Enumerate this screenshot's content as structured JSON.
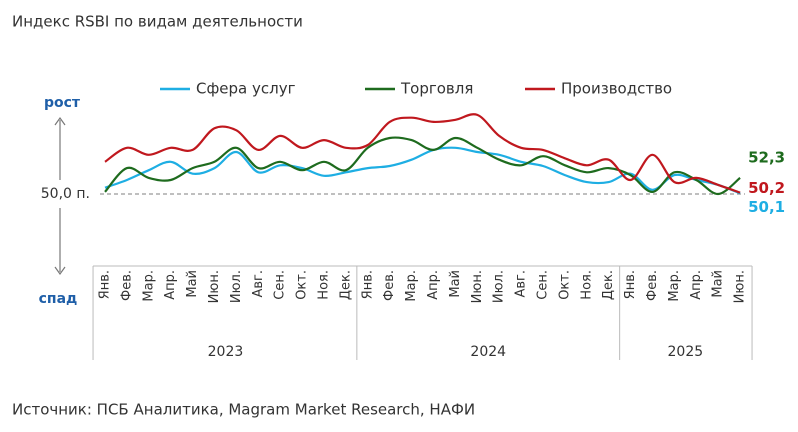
{
  "chart_data": {
    "type": "line",
    "title": "Индекс RSBI по видам деятельности",
    "source": "Источник: ПСБ Аналитика, Magram Market Research, НАФИ",
    "y_labels": {
      "up": "рост",
      "down": "спад"
    },
    "reference": {
      "value": 50,
      "label": "50,0 п."
    },
    "ylim": [
      43,
      63
    ],
    "groups": [
      {
        "label": "2023",
        "categories": [
          "Янв.",
          "Фев.",
          "Мар.",
          "Апр.",
          "Май",
          "Июн.",
          "Июл.",
          "Авг.",
          "Сен.",
          "Окт.",
          "Ноя.",
          "Дек."
        ]
      },
      {
        "label": "2024",
        "categories": [
          "Янв.",
          "Фев.",
          "Мар.",
          "Апр.",
          "Май",
          "Июн.",
          "Июл.",
          "Авг.",
          "Сен.",
          "Окт.",
          "Ноя.",
          "Дек."
        ]
      },
      {
        "label": "2025",
        "categories": [
          "Янв.",
          "Фев.",
          "Мар.",
          "Апр.",
          "Май",
          "Июн."
        ]
      }
    ],
    "series": [
      {
        "name": "Сфера услуг",
        "color": "#1eaee3",
        "values": [
          50.9,
          52,
          53.4,
          54.6,
          52.9,
          53.7,
          56,
          53.1,
          54.1,
          53.7,
          52.6,
          53.1,
          53.7,
          54,
          54.9,
          56.3,
          56.6,
          56,
          55.6,
          54.6,
          54,
          52.7,
          51.7,
          51.7,
          52.9,
          50.6,
          52.7,
          52,
          51.3,
          50.1
        ],
        "value_labels": [
          null,
          null,
          null,
          null,
          null,
          null,
          null,
          null,
          null,
          null,
          null,
          null,
          null,
          null,
          null,
          null,
          null,
          null,
          null,
          null,
          null,
          null,
          null,
          null,
          null,
          null,
          null,
          null,
          null,
          "50,1"
        ]
      },
      {
        "name": "Торговля",
        "color": "#1e6b1e",
        "values": [
          50.3,
          53.7,
          52.3,
          52,
          53.7,
          54.6,
          56.6,
          53.7,
          54.6,
          53.4,
          54.6,
          53.4,
          56.6,
          58,
          57.7,
          56.3,
          58,
          56.6,
          54.9,
          54.1,
          55.4,
          54.1,
          53.1,
          53.7,
          52.7,
          50.3,
          53.1,
          52,
          50,
          52.3
        ],
        "value_labels": [
          null,
          null,
          null,
          null,
          null,
          null,
          null,
          null,
          null,
          null,
          null,
          null,
          null,
          null,
          null,
          null,
          null,
          null,
          null,
          null,
          null,
          null,
          null,
          null,
          null,
          null,
          null,
          null,
          null,
          "52,3"
        ]
      },
      {
        "name": "Производство",
        "color": "#c0181e",
        "values": [
          54.6,
          56.6,
          55.6,
          56.6,
          56.3,
          59.4,
          59.1,
          56.3,
          58.3,
          56.6,
          57.7,
          56.6,
          57,
          60.3,
          60.9,
          60.3,
          60.6,
          61.3,
          58.3,
          56.6,
          56.3,
          55.1,
          54.1,
          54.9,
          52,
          55.6,
          51.7,
          52.3,
          51.3,
          50.2
        ],
        "value_labels": [
          null,
          null,
          null,
          null,
          null,
          null,
          null,
          null,
          null,
          null,
          null,
          null,
          null,
          null,
          null,
          null,
          null,
          null,
          null,
          null,
          null,
          null,
          null,
          null,
          null,
          null,
          null,
          null,
          null,
          "50,2"
        ]
      }
    ]
  }
}
